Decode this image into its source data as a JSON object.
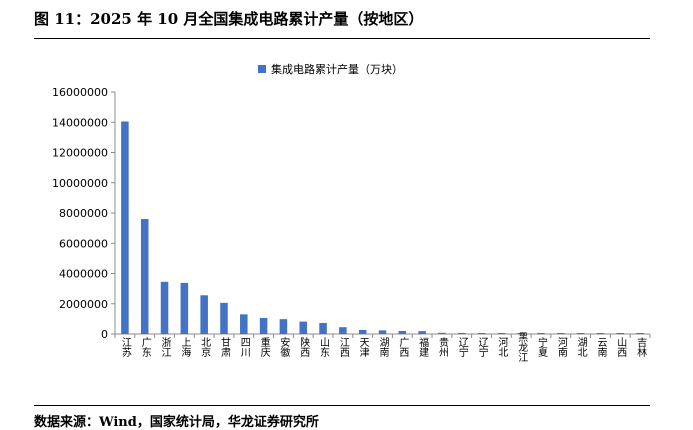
{
  "figure": {
    "title": "图 11：2025 年 10 月全国集成电路累计产量（按地区）",
    "source": "数据来源：Wind，国家统计局，华龙证券研究所"
  },
  "chart_data": {
    "type": "bar",
    "categories": [
      "江苏",
      "广东",
      "浙江",
      "上海",
      "北京",
      "甘肃",
      "四川",
      "重庆",
      "安徽",
      "陕西",
      "山东",
      "江西",
      "天津",
      "湖南",
      "广西",
      "福建",
      "贵州",
      "辽宁",
      "辽宁",
      "河北",
      "黑龙江",
      "宁夏",
      "河南",
      "湖北",
      "云南",
      "山西",
      "吉林"
    ],
    "series": [
      {
        "name": "集成电路累计产量（万块）",
        "color": "#4472C4",
        "values": [
          14050000,
          7600000,
          3450000,
          3380000,
          2560000,
          2060000,
          1300000,
          1060000,
          980000,
          820000,
          730000,
          450000,
          270000,
          240000,
          200000,
          190000,
          80000,
          70000,
          60000,
          50000,
          40000,
          30000,
          25000,
          20000,
          15000,
          10000,
          8000
        ]
      }
    ],
    "ylim": [
      0,
      16000000
    ],
    "yticks": [
      0,
      2000000,
      4000000,
      6000000,
      8000000,
      10000000,
      12000000,
      14000000,
      16000000
    ],
    "ytick_labels": [
      "0",
      "2000000",
      "4000000",
      "6000000",
      "8000000",
      "10000000",
      "12000000",
      "14000000",
      "16000000"
    ],
    "legend_position": "top-center",
    "grid": false
  }
}
